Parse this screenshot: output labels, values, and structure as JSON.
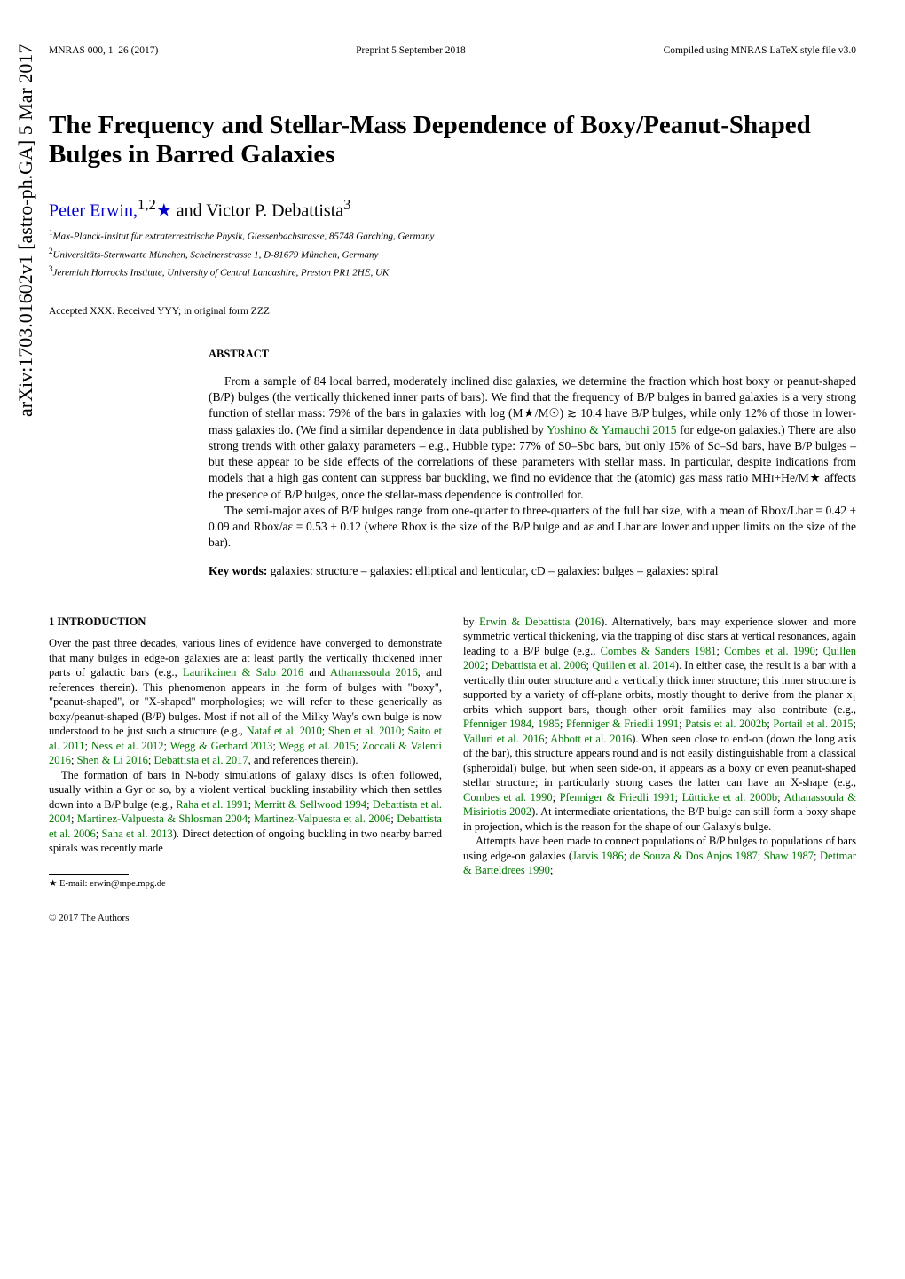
{
  "header": {
    "left": "MNRAS 000, 1–26 (2017)",
    "center": "Preprint 5 September 2018",
    "right": "Compiled using MNRAS LaTeX style file v3.0"
  },
  "arxiv": "arXiv:1703.01602v1  [astro-ph.GA]  5 Mar 2017",
  "title": "The Frequency and Stellar-Mass Dependence of Boxy/Peanut-Shaped Bulges in Barred Galaxies",
  "authors": {
    "text_before": "Peter Erwin,",
    "sup1": "1,2",
    "star": "★",
    "and": " and Victor P. Debattista",
    "sup2": "3"
  },
  "affiliations": [
    "Max-Planck-Insitut für extraterrestrische Physik, Giessenbachstrasse, 85748 Garching, Germany",
    "Universitäts-Sternwarte München, Scheinerstrasse 1, D-81679 München, Germany",
    "Jeremiah Horrocks Institute, University of Central Lancashire, Preston PR1 2HE, UK"
  ],
  "accepted": "Accepted XXX. Received YYY; in original form ZZZ",
  "abstract_heading": "ABSTRACT",
  "abstract": {
    "p1_a": "From a sample of 84 local barred, moderately inclined disc galaxies, we determine the fraction which host boxy or peanut-shaped (B/P) bulges (the vertically thickened inner parts of bars). We find that the frequency of B/P bulges in barred galaxies is a very strong function of stellar mass: 79% of the bars in galaxies with log (M★/M☉) ≳ 10.4 have B/P bulges, while only 12% of those in lower-mass galaxies do. (We find a similar dependence in data published by ",
    "p1_ref1": "Yoshino & Yamauchi 2015",
    "p1_b": " for edge-on galaxies.) There are also strong trends with other galaxy parameters – e.g., Hubble type: 77% of S0–Sbc bars, but only 15% of Sc–Sd bars, have B/P bulges – but these appear to be side effects of the correlations of these parameters with stellar mass. In particular, despite indications from models that a high gas content can suppress bar buckling, we find no evidence that the (atomic) gas mass ratio MHɪ+He/M★ affects the presence of B/P bulges, once the stellar-mass dependence is controlled for.",
    "p2": "The semi-major axes of B/P bulges range from one-quarter to three-quarters of the full bar size, with a mean of Rbox/Lbar = 0.42 ± 0.09 and Rbox/aε = 0.53 ± 0.12 (where Rbox is the size of the B/P bulge and aε and Lbar are lower and upper limits on the size of the bar)."
  },
  "keywords_label": "Key words:",
  "keywords": " galaxies: structure – galaxies: elliptical and lenticular, cD – galaxies: bulges – galaxies: spiral",
  "section1_heading": "1   INTRODUCTION",
  "col_left": {
    "p1_a": "Over the past three decades, various lines of evidence have converged to demonstrate that many bulges in edge-on galaxies are at least partly the vertically thickened inner parts of galactic bars (e.g., ",
    "r1": "Laurikainen & Salo 2016",
    "p1_b": " and ",
    "r2": "Athanassoula 2016",
    "p1_c": ", and references therein). This phenomenon appears in the form of bulges with \"boxy\", \"peanut-shaped\", or \"X-shaped\" morphologies; we will refer to these generically as boxy/peanut-shaped (B/P) bulges. Most if not all of the Milky Way's own bulge is now understood to be just such a structure (e.g., ",
    "r3": "Nataf et al. 2010",
    "p1_d": "; ",
    "r4": "Shen et al. 2010",
    "p1_e": "; ",
    "r5": "Saito et al. 2011",
    "p1_f": "; ",
    "r6": "Ness et al. 2012",
    "p1_g": "; ",
    "r7": "Wegg & Gerhard 2013",
    "p1_h": "; ",
    "r8": "Wegg et al. 2015",
    "p1_i": "; ",
    "r9": "Zoccali & Valenti 2016",
    "p1_j": "; ",
    "r10": "Shen & Li 2016",
    "p1_k": "; ",
    "r11": "Debattista et al. 2017",
    "p1_l": ", and references therein).",
    "p2_a": "The formation of bars in N-body simulations of galaxy discs is often followed, usually within a Gyr or so, by a violent vertical buckling instability which then settles down into a B/P bulge (e.g., ",
    "r12": "Raha et al. 1991",
    "p2_b": "; ",
    "r13": "Merritt & Sellwood 1994",
    "p2_c": "; ",
    "r14": "Debattista et al. 2004",
    "p2_d": "; ",
    "r15": "Martinez-Valpuesta & Shlosman 2004",
    "p2_e": "; ",
    "r16": "Martinez-Valpuesta et al. 2006",
    "p2_f": "; ",
    "r17": "Debattista et al. 2006",
    "p2_g": "; ",
    "r18": "Saha et al. 2013",
    "p2_h": "). Direct detection of ongoing buckling in two nearby barred spirals was recently made"
  },
  "col_right": {
    "p1_a": "by ",
    "r1": "Erwin & Debattista",
    "p1_b": " (",
    "r1y": "2016",
    "p1_c": "). Alternatively, bars may experience slower and more symmetric vertical thickening, via the trapping of disc stars at vertical resonances, again leading to a B/P bulge (e.g., ",
    "r2": "Combes & Sanders 1981",
    "p1_d": "; ",
    "r3": "Combes et al. 1990",
    "p1_e": "; ",
    "r4": "Quillen 2002",
    "p1_f": "; ",
    "r5": "Debattista et al. 2006",
    "p1_g": "; ",
    "r6": "Quillen et al. 2014",
    "p1_h": "). In either case, the result is a bar with a vertically thin outer structure and a vertically thick inner structure; this inner structure is supported by a variety of off-plane orbits, mostly thought to derive from the planar x₁ orbits which support bars, though other orbit families may also contribute (e.g., ",
    "r7": "Pfenniger 1984",
    "p1_i": ", ",
    "r8": "1985",
    "p1_j": "; ",
    "r9": "Pfenniger & Friedli 1991",
    "p1_k": "; ",
    "r10": "Patsis et al. 2002b",
    "p1_l": "; ",
    "r11": "Portail et al. 2015",
    "p1_m": "; ",
    "r12": "Valluri et al. 2016",
    "p1_n": "; ",
    "r13": "Abbott et al. 2016",
    "p1_o": "). When seen close to end-on (down the long axis of the bar), this structure appears round and is not easily distinguishable from a classical (spheroidal) bulge, but when seen side-on, it appears as a boxy or even peanut-shaped stellar structure; in particularly strong cases the latter can have an X-shape (e.g., ",
    "r14": "Combes et al. 1990",
    "p1_p": "; ",
    "r15": "Pfenniger & Friedli 1991",
    "p1_q": "; ",
    "r16": "Lütticke et al. 2000b",
    "p1_r": "; ",
    "r17": "Athanassoula & Misiriotis 2002",
    "p1_s": "). At intermediate orientations, the B/P bulge can still form a boxy shape in projection, which is the reason for the shape of our Galaxy's bulge.",
    "p2_a": "Attempts have been made to connect populations of B/P bulges to populations of bars using edge-on galaxies (",
    "r18": "Jarvis 1986",
    "p2_b": "; ",
    "r19": "de Souza & Dos Anjos 1987",
    "p2_c": "; ",
    "r20": "Shaw 1987",
    "p2_d": "; ",
    "r21": "Dettmar & Barteldrees 1990",
    "p2_e": ";"
  },
  "footnote": "★ E-mail: erwin@mpe.mpg.de",
  "copyright": "© 2017 The Authors"
}
